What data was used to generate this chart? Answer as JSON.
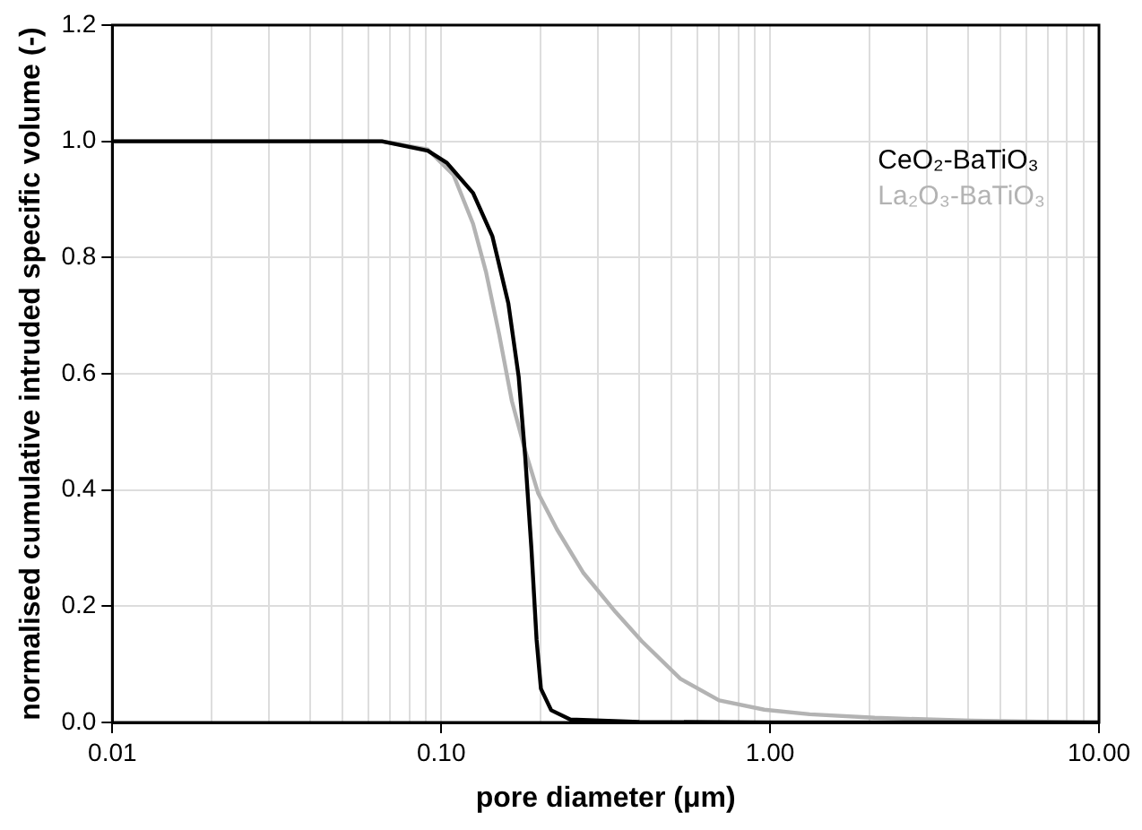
{
  "chart_data": {
    "type": "line",
    "xlabel": "pore diameter (μm)",
    "ylabel": "normalised cumulative intruded specific volume (-)",
    "log": "x",
    "grid": true,
    "legend": "top right",
    "marker": "none",
    "line_style": "solid",
    "xlim": [
      0.01,
      10
    ],
    "ylim": [
      0,
      1.2
    ],
    "xticks": [
      {
        "value": 0.01,
        "label": "0.01"
      },
      {
        "value": 0.02,
        "label": null
      },
      {
        "value": 0.03,
        "label": null
      },
      {
        "value": 0.04,
        "label": null
      },
      {
        "value": 0.05,
        "label": null
      },
      {
        "value": 0.06,
        "label": null
      },
      {
        "value": 0.07,
        "label": null
      },
      {
        "value": 0.08,
        "label": null
      },
      {
        "value": 0.09,
        "label": null
      },
      {
        "value": 0.1,
        "label": "0.10"
      },
      {
        "value": 0.2,
        "label": null
      },
      {
        "value": 0.3,
        "label": null
      },
      {
        "value": 0.4,
        "label": null
      },
      {
        "value": 0.5,
        "label": null
      },
      {
        "value": 0.6,
        "label": null
      },
      {
        "value": 0.7,
        "label": null
      },
      {
        "value": 0.8,
        "label": null
      },
      {
        "value": 0.9,
        "label": null
      },
      {
        "value": 1,
        "label": "1.00"
      },
      {
        "value": 2,
        "label": null
      },
      {
        "value": 3,
        "label": null
      },
      {
        "value": 4,
        "label": null
      },
      {
        "value": 5,
        "label": null
      },
      {
        "value": 6,
        "label": null
      },
      {
        "value": 7,
        "label": null
      },
      {
        "value": 8,
        "label": null
      },
      {
        "value": 9,
        "label": null
      },
      {
        "value": 10,
        "label": "10.00"
      }
    ],
    "yticks": [
      {
        "value": 0,
        "label": "0.0"
      },
      {
        "value": 0.2,
        "label": "0.2"
      },
      {
        "value": 0.4,
        "label": "0.4"
      },
      {
        "value": 0.6,
        "label": "0.6"
      },
      {
        "value": 0.8,
        "label": "0.8"
      },
      {
        "value": 1,
        "label": "1.0"
      },
      {
        "value": 1.2,
        "label": "1.2"
      }
    ],
    "series": [
      {
        "name": "CeO₂-BaTiO₃",
        "color": "#000000",
        "x": [
          0.01,
          0.066,
          0.091,
          0.104,
          0.125,
          0.143,
          0.16,
          0.172,
          0.18,
          0.188,
          0.195,
          0.201,
          0.216,
          0.247,
          0.4,
          1,
          10
        ],
        "values": [
          1,
          1,
          0.984,
          0.963,
          0.911,
          0.837,
          0.721,
          0.595,
          0.458,
          0.3,
          0.142,
          0.058,
          0.021,
          0.005,
          0.001,
          0,
          0
        ]
      },
      {
        "name": "La₂O₃-BaTiO₃",
        "color": "#b3b3b3",
        "x": [
          0.01,
          0.066,
          0.091,
          0.109,
          0.125,
          0.137,
          0.15,
          0.164,
          0.18,
          0.197,
          0.225,
          0.27,
          0.339,
          0.407,
          0.534,
          0.7,
          0.96,
          1.32,
          2.08,
          4.1,
          9.3,
          10
        ],
        "values": [
          1,
          1,
          0.986,
          0.942,
          0.858,
          0.774,
          0.668,
          0.553,
          0.468,
          0.395,
          0.332,
          0.258,
          0.19,
          0.14,
          0.075,
          0.038,
          0.022,
          0.014,
          0.008,
          0.003,
          0,
          0
        ]
      }
    ]
  }
}
